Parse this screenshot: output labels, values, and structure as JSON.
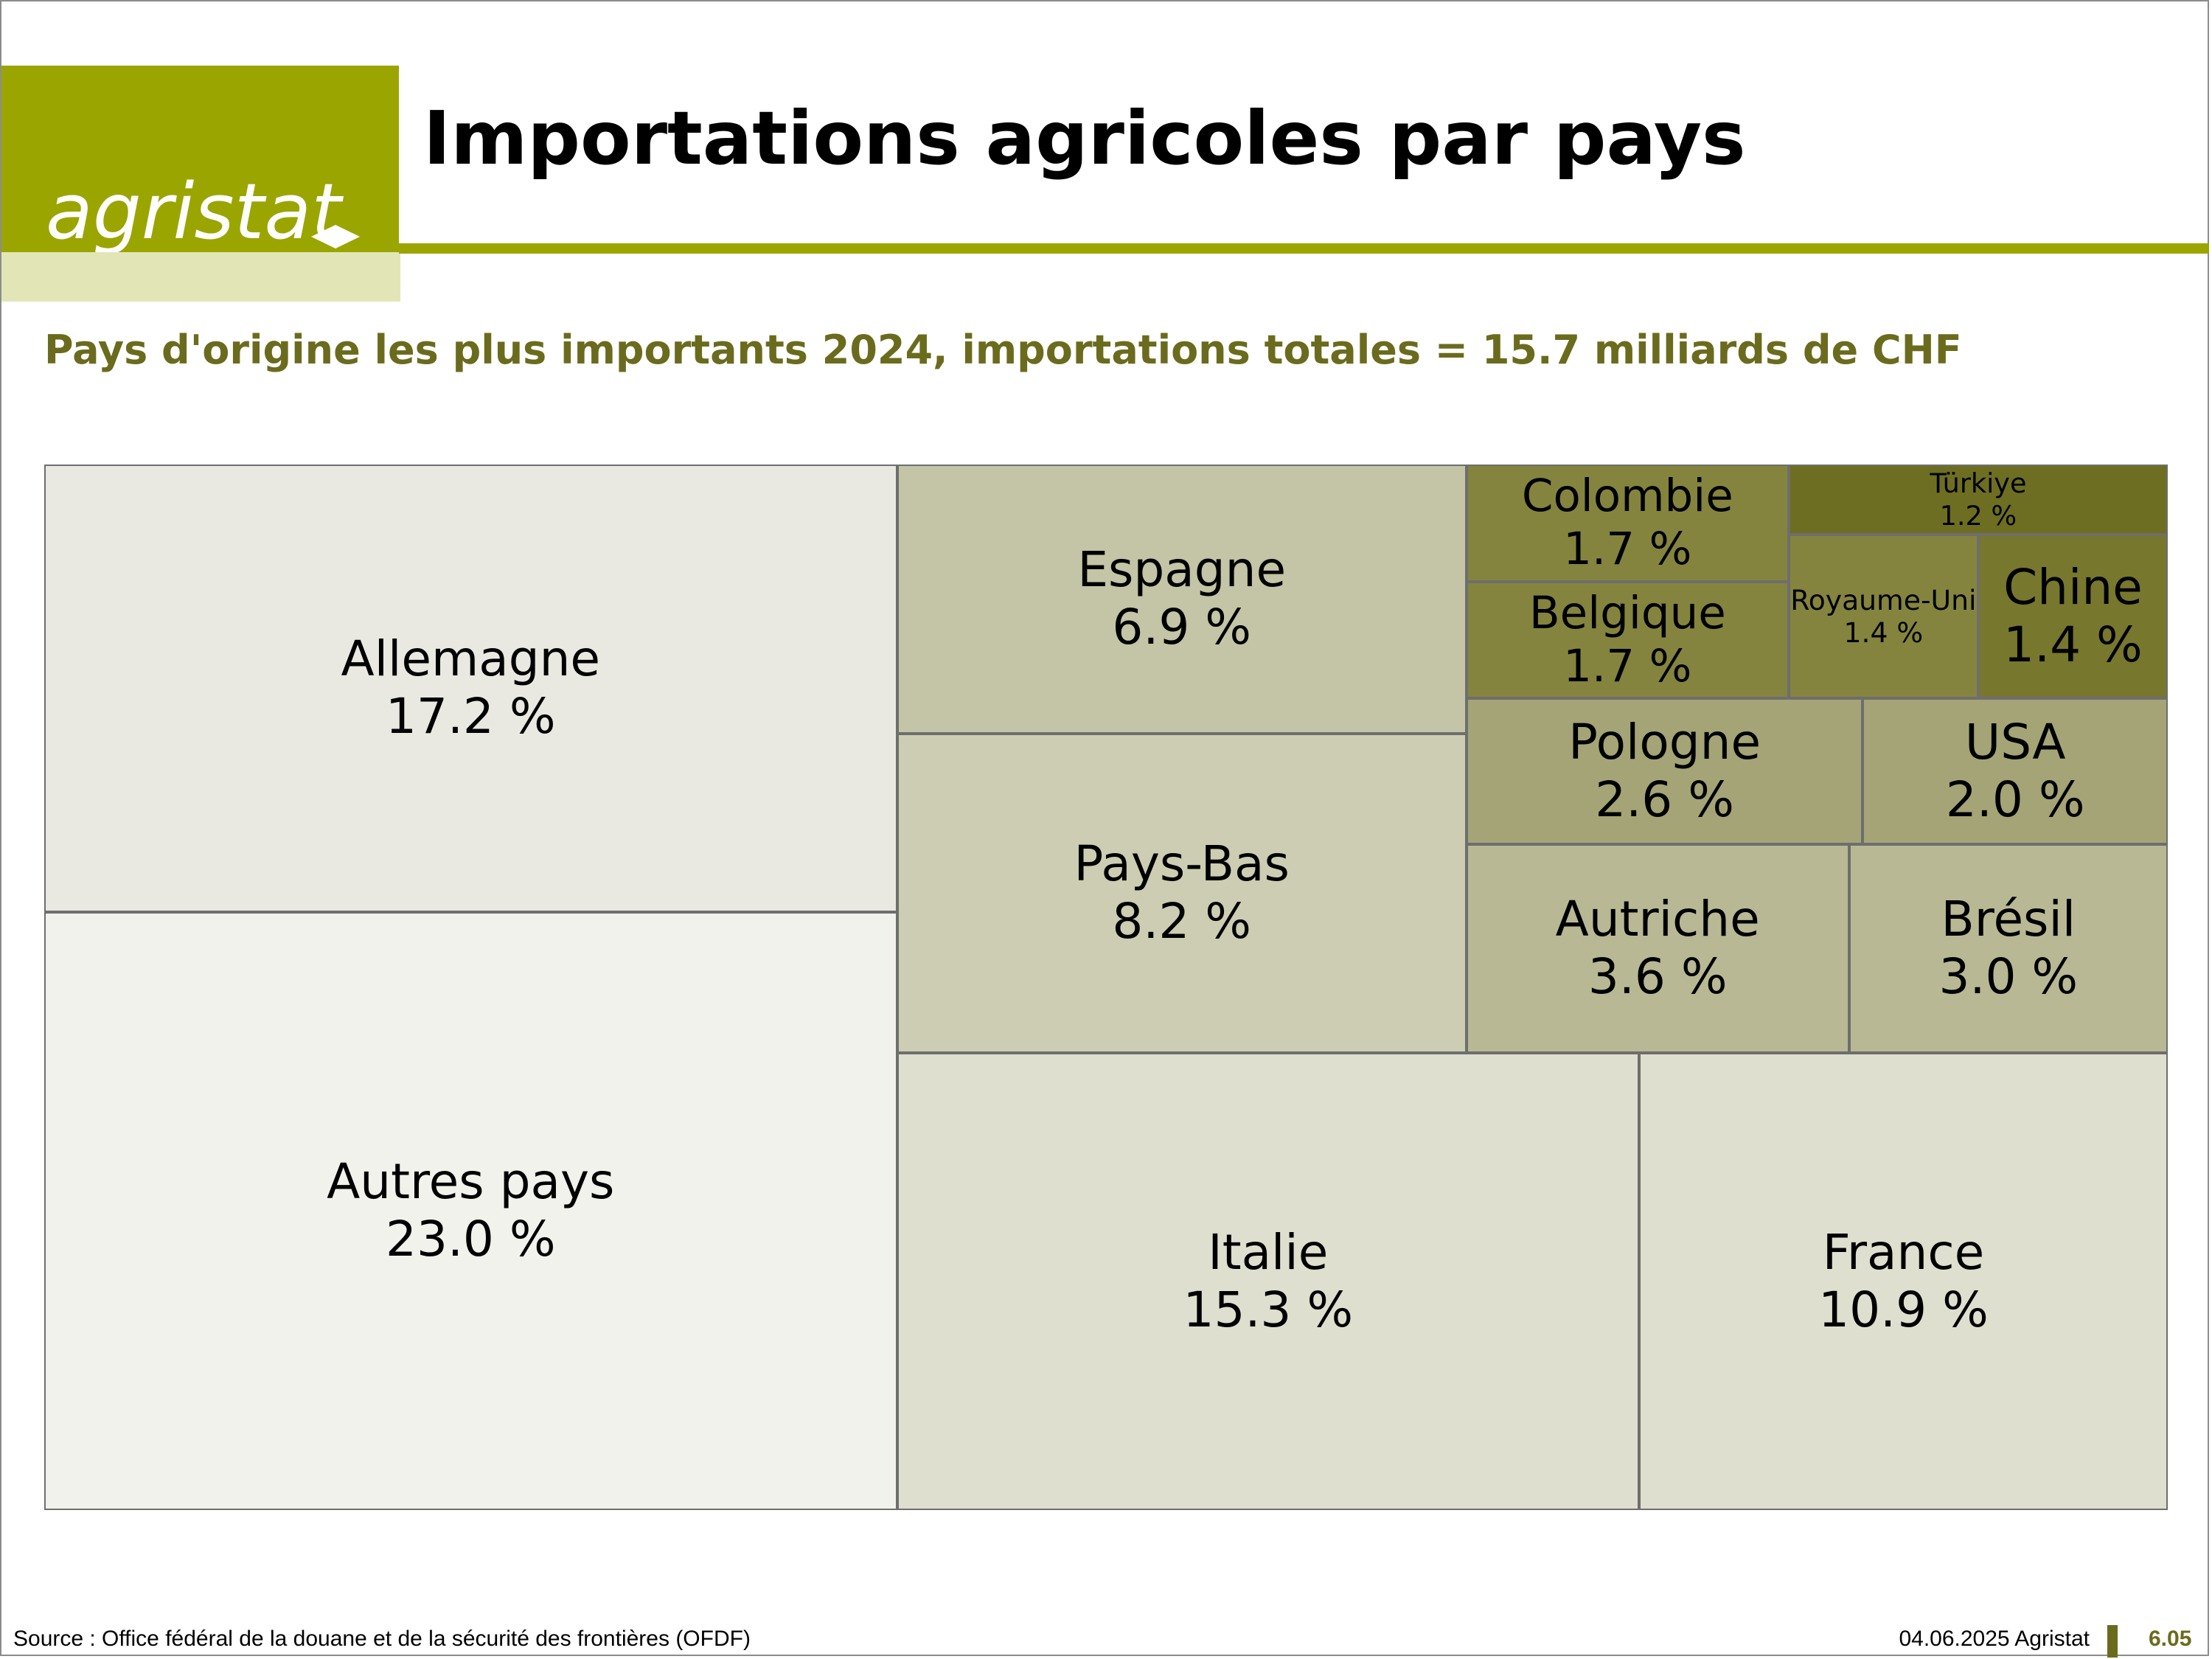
{
  "header": {
    "logo_text": "agristat",
    "title": "Importations agricoles par pays",
    "brand_color": "#9ba500",
    "brand_light_color": "#e2e6b6"
  },
  "chart_data": {
    "type": "treemap",
    "title": "Pays d'origine les plus importants 2024, importations totales = 15.7 milliards de CHF",
    "unit": "%",
    "items": [
      {
        "name": "Autres pays",
        "value": 23.0,
        "label": "23.0 %",
        "color": "#f2f2ec"
      },
      {
        "name": "Allemagne",
        "value": 17.2,
        "label": "17.2 %",
        "color": "#e9e9e1"
      },
      {
        "name": "Italie",
        "value": 15.3,
        "label": "15.3 %",
        "color": "#dfdfcf"
      },
      {
        "name": "France",
        "value": 10.9,
        "label": "10.9 %",
        "color": "#dfdfcf"
      },
      {
        "name": "Pays-Bas",
        "value": 8.2,
        "label": "8.2 %",
        "color": "#cdcdb3"
      },
      {
        "name": "Espagne",
        "value": 6.9,
        "label": "6.9 %",
        "color": "#c4c4a6"
      },
      {
        "name": "Autriche",
        "value": 3.6,
        "label": "3.6 %",
        "color": "#b8b894"
      },
      {
        "name": "Brésil",
        "value": 3.0,
        "label": "3.0 %",
        "color": "#b8b894"
      },
      {
        "name": "Pologne",
        "value": 2.6,
        "label": "2.6 %",
        "color": "#a4a476"
      },
      {
        "name": "USA",
        "value": 2.0,
        "label": "2.0 %",
        "color": "#a4a476"
      },
      {
        "name": "Colombie",
        "value": 1.7,
        "label": "1.7 %",
        "color": "#84843e"
      },
      {
        "name": "Belgique",
        "value": 1.7,
        "label": "1.7 %",
        "color": "#84843e"
      },
      {
        "name": "Royaume-Uni",
        "value": 1.4,
        "label": "1.4 %",
        "color": "#84843e"
      },
      {
        "name": "Chine",
        "value": 1.4,
        "label": "1.4 %",
        "color": "#77772e"
      },
      {
        "name": "Türkiye",
        "value": 1.2,
        "label": "1.2 %",
        "color": "#6e6e22"
      }
    ]
  },
  "footer": {
    "source": "Source : Office fédéral de la douane et de la sécurité des frontières (OFDF)",
    "date": "04.06.2025 Agristat",
    "page": "6.05"
  }
}
